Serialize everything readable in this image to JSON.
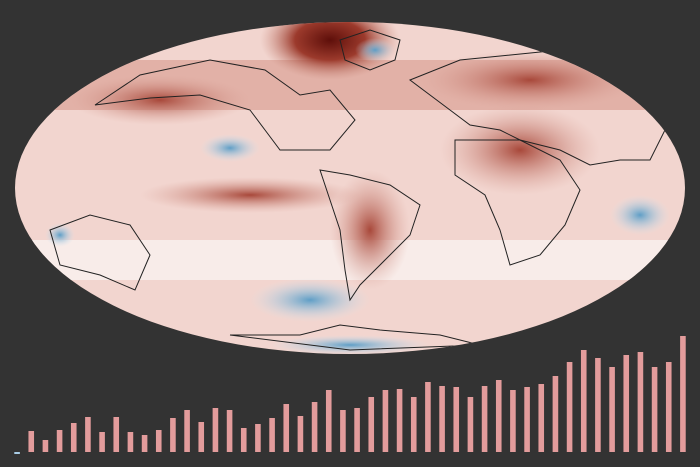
{
  "chart_data": {
    "type": "bar",
    "values": [
      -2,
      21,
      12,
      22,
      29,
      35,
      20,
      35,
      20,
      17,
      22,
      34,
      42,
      30,
      44,
      42,
      24,
      28,
      34,
      48,
      36,
      50,
      62,
      42,
      44,
      55,
      62,
      63,
      55,
      70,
      66,
      65,
      55,
      66,
      72,
      62,
      65,
      68,
      76,
      90,
      102,
      94,
      85,
      97,
      100,
      85,
      90,
      116
    ],
    "color": "#e39c9c",
    "negative_color": "#a9cde6"
  }
}
